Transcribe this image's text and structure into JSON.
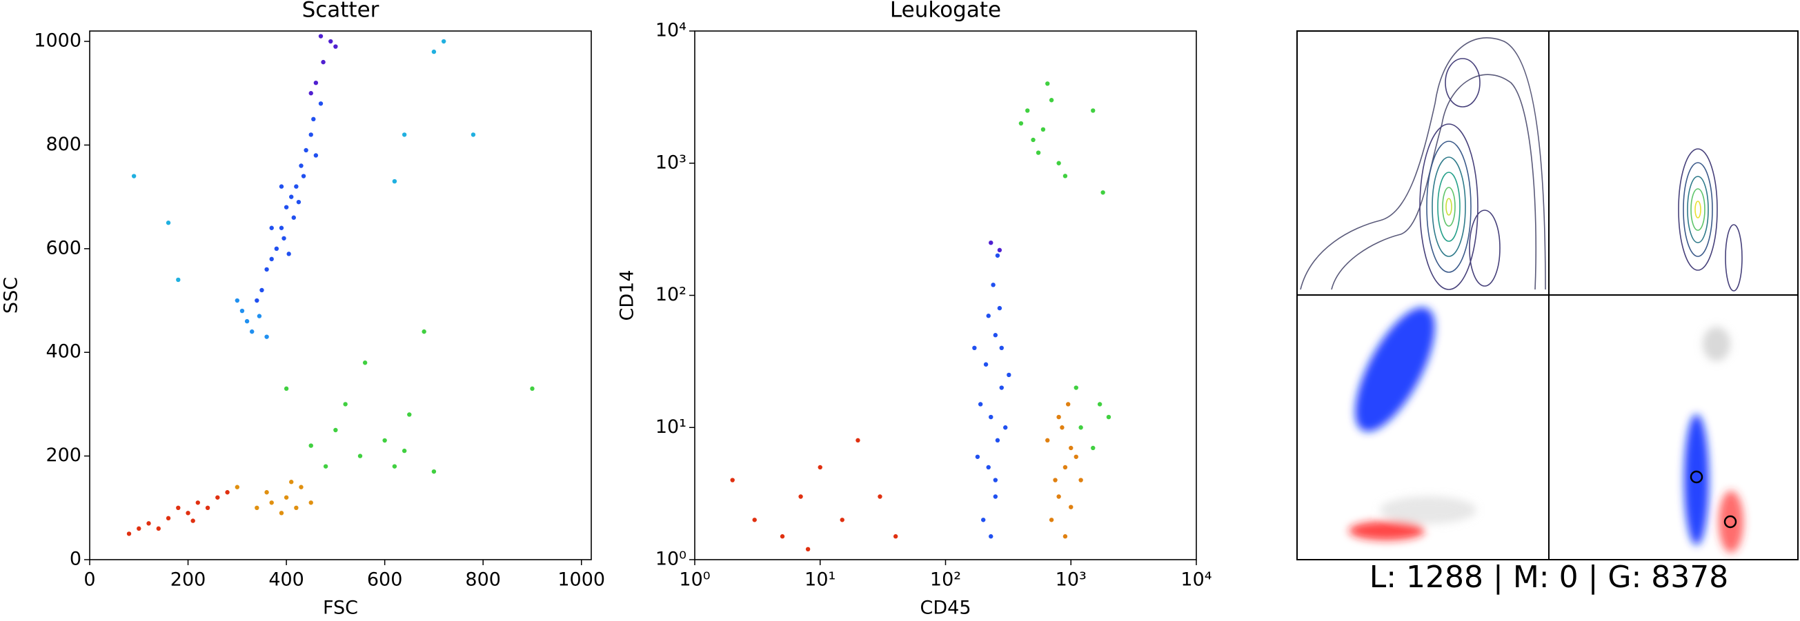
{
  "chart_data": [
    {
      "type": "scatter",
      "title": "Scatter",
      "xlabel": "FSC",
      "ylabel": "SSC",
      "xlim": [
        0,
        1020
      ],
      "ylim": [
        0,
        1020
      ],
      "xticks": [
        0,
        200,
        400,
        600,
        800,
        1000
      ],
      "yticks": [
        0,
        200,
        400,
        600,
        800,
        1000
      ],
      "series": [
        {
          "color": "#2050f0",
          "x": [
            350,
            370,
            390,
            410,
            430,
            450,
            470,
            380,
            400,
            420,
            440,
            360,
            340,
            395,
            415,
            435,
            455,
            460,
            390,
            370,
            405,
            425
          ],
          "values": [
            520,
            580,
            640,
            700,
            760,
            820,
            880,
            600,
            680,
            720,
            790,
            560,
            500,
            620,
            660,
            740,
            850,
            780,
            720,
            640,
            590,
            690
          ]
        },
        {
          "color": "#5020d0",
          "x": [
            460,
            475,
            490,
            450,
            500,
            470
          ],
          "values": [
            920,
            960,
            1000,
            900,
            990,
            1010
          ]
        },
        {
          "color": "#2090f0",
          "x": [
            330,
            345,
            320,
            360,
            310,
            300
          ],
          "values": [
            440,
            470,
            460,
            430,
            480,
            500
          ]
        },
        {
          "color": "#e03010",
          "x": [
            80,
            120,
            160,
            200,
            240,
            260,
            180,
            220,
            140,
            100,
            280,
            210
          ],
          "values": [
            50,
            70,
            80,
            90,
            100,
            120,
            100,
            110,
            60,
            60,
            130,
            75
          ]
        },
        {
          "color": "#e09010",
          "x": [
            340,
            370,
            400,
            420,
            390,
            430,
            360,
            450,
            300,
            410
          ],
          "values": [
            100,
            110,
            120,
            100,
            90,
            140,
            130,
            110,
            140,
            150
          ]
        },
        {
          "color": "#40d040",
          "x": [
            450,
            500,
            550,
            600,
            650,
            520,
            480,
            620,
            700,
            400,
            560,
            680,
            900,
            640
          ],
          "values": [
            220,
            250,
            200,
            230,
            280,
            300,
            180,
            180,
            170,
            330,
            380,
            440,
            330,
            210
          ]
        },
        {
          "color": "#20b0e0",
          "x": [
            180,
            160,
            90,
            640,
            620,
            780,
            720,
            700
          ],
          "values": [
            540,
            650,
            740,
            820,
            730,
            820,
            1000,
            980
          ]
        }
      ]
    },
    {
      "type": "scatter",
      "title": "Leukogate",
      "xlabel": "CD45",
      "ylabel": "CD14",
      "xscale": "log",
      "yscale": "log",
      "xlim": [
        1,
        10000
      ],
      "ylim": [
        1,
        10000
      ],
      "xticks": [
        {
          "value": 1,
          "label": "10⁰"
        },
        {
          "value": 10,
          "label": "10¹"
        },
        {
          "value": 100,
          "label": "10²"
        },
        {
          "value": 1000,
          "label": "10³"
        },
        {
          "value": 10000,
          "label": "10⁴"
        }
      ],
      "yticks": [
        {
          "value": 1,
          "label": "10⁰"
        },
        {
          "value": 10,
          "label": "10¹"
        },
        {
          "value": 100,
          "label": "10²"
        },
        {
          "value": 1000,
          "label": "10³"
        },
        {
          "value": 10000,
          "label": "10⁴"
        }
      ],
      "series": [
        {
          "color": "#2050f0",
          "x": [
            200,
            250,
            220,
            260,
            230,
            280,
            210,
            250,
            270,
            240,
            260,
            190,
            300,
            180,
            230,
            280,
            220,
            320,
            170,
            250
          ],
          "values": [
            2,
            3,
            5,
            8,
            12,
            20,
            30,
            50,
            80,
            120,
            200,
            15,
            10,
            6,
            1.5,
            40,
            70,
            25,
            40,
            4
          ]
        },
        {
          "color": "#5020d0",
          "x": [
            230,
            270
          ],
          "values": [
            250,
            220
          ]
        },
        {
          "color": "#e08010",
          "x": [
            700,
            800,
            900,
            1000,
            850,
            950,
            750,
            1100,
            650,
            900,
            1000,
            800,
            1200
          ],
          "values": [
            2,
            3,
            5,
            7,
            10,
            15,
            4,
            6,
            8,
            1.5,
            2.5,
            12,
            4
          ]
        },
        {
          "color": "#e03010",
          "x": [
            2,
            3,
            5,
            7,
            10,
            15,
            20,
            30,
            40,
            8
          ],
          "values": [
            4,
            2,
            1.5,
            3,
            5,
            2,
            8,
            3,
            1.5,
            1.2
          ]
        },
        {
          "color": "#40d040",
          "x": [
            400,
            500,
            600,
            700,
            550,
            800,
            450,
            900,
            650,
            1500,
            1800,
            1200,
            1500,
            1700,
            1100,
            2000
          ],
          "values": [
            2000,
            1500,
            1800,
            3000,
            1200,
            1000,
            2500,
            800,
            4000,
            2500,
            600,
            10,
            7,
            15,
            20,
            12
          ]
        }
      ]
    }
  ],
  "panel3": {
    "summary": "L: 1288 | M: 0 | G: 8378"
  }
}
